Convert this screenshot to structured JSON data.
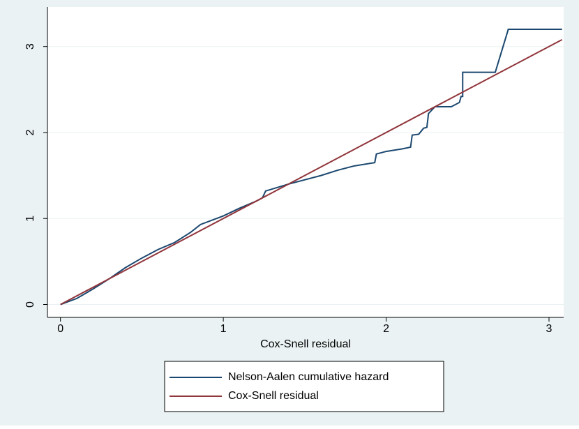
{
  "chart_data": {
    "type": "line",
    "xlabel": "Cox-Snell residual",
    "xlim": [
      -0.08,
      3.09
    ],
    "ylim": [
      -0.15,
      3.46
    ],
    "xticks": [
      0,
      1,
      2,
      3
    ],
    "yticks": [
      0,
      1,
      2,
      3
    ],
    "grid": true,
    "legend": "bottom",
    "series": [
      {
        "name": "Nelson-Aalen cumulative hazard",
        "color": "#1a476f",
        "x": [
          0,
          0.1,
          0.2,
          0.3,
          0.4,
          0.5,
          0.6,
          0.7,
          0.8,
          0.86,
          1.0,
          1.1,
          1.2,
          1.24,
          1.26,
          1.4,
          1.6,
          1.7,
          1.8,
          1.93,
          1.94,
          2.0,
          2.1,
          2.15,
          2.16,
          2.2,
          2.23,
          2.25,
          2.26,
          2.3,
          2.4,
          2.45,
          2.46,
          2.47,
          2.47,
          2.67,
          2.75,
          3.08
        ],
        "values": [
          0,
          0.07,
          0.18,
          0.3,
          0.43,
          0.54,
          0.64,
          0.72,
          0.84,
          0.93,
          1.03,
          1.12,
          1.2,
          1.24,
          1.32,
          1.4,
          1.5,
          1.56,
          1.61,
          1.65,
          1.75,
          1.78,
          1.81,
          1.83,
          1.97,
          1.98,
          2.05,
          2.06,
          2.22,
          2.3,
          2.3,
          2.35,
          2.42,
          2.42,
          2.7,
          2.7,
          3.2,
          3.2
        ]
      },
      {
        "name": "Cox-Snell residual",
        "color": "#90353b",
        "x": [
          0,
          3.08
        ],
        "values": [
          0,
          3.08
        ]
      }
    ]
  }
}
